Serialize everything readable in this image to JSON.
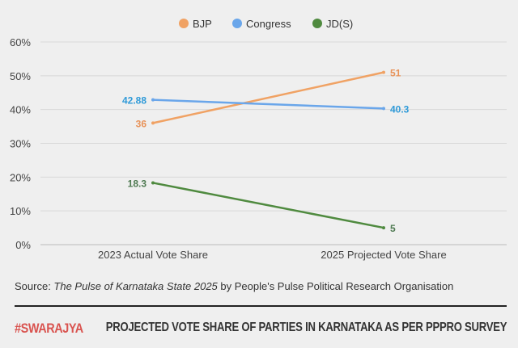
{
  "chart_data": {
    "type": "line",
    "categories": [
      "2023 Actual Vote Share",
      "2025 Projected Vote Share"
    ],
    "series": [
      {
        "name": "BJP",
        "values": [
          36,
          51
        ],
        "color": "#f0a264",
        "labels": [
          "36",
          "51"
        ]
      },
      {
        "name": "Congress",
        "values": [
          42.88,
          40.3
        ],
        "color": "#6aa6ea",
        "labels": [
          "42.88",
          "40.3"
        ]
      },
      {
        "name": "JD(S)",
        "values": [
          18.3,
          5
        ],
        "color": "#4f8a3f",
        "labels": [
          "18.3",
          "5"
        ]
      }
    ],
    "ylim": [
      0,
      60
    ],
    "yticks": [
      "0%",
      "10%",
      "20%",
      "30%",
      "40%",
      "50%",
      "60%"
    ],
    "grid": true,
    "legend": "top"
  },
  "source": {
    "prefix": "Source: ",
    "italic": "The Pulse of Karnataka State 2025",
    "suffix": " by People's Pulse Political Research Organisation"
  },
  "footer": {
    "brand": "#SWARAJYA",
    "title": "PROJECTED VOTE SHARE OF PARTIES IN KARNATAKA AS PER PPPRO SURVEY"
  },
  "label_colors": {
    "BJP": "#e8935a",
    "Congress": "#2f9ad8",
    "JD(S)": "#4f7a52"
  }
}
